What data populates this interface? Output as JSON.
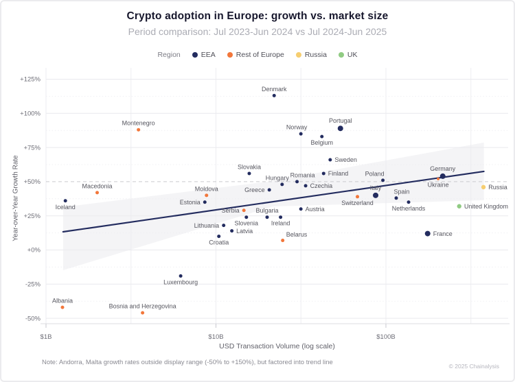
{
  "header": {
    "title": "Crypto adoption in Europe: growth vs. market size",
    "subtitle": "Period comparison: Jul 2023-Jun 2024 vs Jul 2024-Jun 2025"
  },
  "legend": {
    "label": "Region",
    "items": [
      {
        "label": "EEA",
        "color": "#232C5F"
      },
      {
        "label": "Rest of Europe",
        "color": "#F2773B"
      },
      {
        "label": "Russia",
        "color": "#F6CE70"
      },
      {
        "label": "UK",
        "color": "#90CB83"
      }
    ]
  },
  "chart_data": {
    "type": "scatter",
    "title": "Crypto adoption in Europe: growth vs. market size",
    "x_axis": {
      "label": "USD Transaction Volume (log scale)",
      "scale": "log",
      "ticks": [
        {
          "label": "$1B",
          "value_b": 1
        },
        {
          "label": "$10B",
          "value_b": 10
        },
        {
          "label": "$100B",
          "value_b": 100
        }
      ],
      "gridlines_b": [
        1,
        3.162,
        10,
        31.62,
        100,
        316.2
      ]
    },
    "y_axis": {
      "label": "Year-over-Year Growth Rate",
      "ticks": [
        {
          "label": "+125%",
          "value": 125
        },
        {
          "label": "+100%",
          "value": 100
        },
        {
          "label": "+75%",
          "value": 75
        },
        {
          "label": "+50%",
          "value": 50
        },
        {
          "label": "+25%",
          "value": 25
        },
        {
          "label": "+0%",
          "value": 0
        },
        {
          "label": "-25%",
          "value": -25
        },
        {
          "label": "-50%",
          "value": -50
        }
      ],
      "minor_ticks_pct": [
        112.5,
        87.5,
        62.5,
        37.5,
        12.5,
        -12.5,
        -37.5
      ]
    },
    "reference_line": {
      "value": 50,
      "style": "dashed"
    },
    "trend_line": {
      "from": {
        "volume_b": 1.26,
        "growth_pct": 13.3
      },
      "to": {
        "volume_b": 377,
        "growth_pct": 57.5
      }
    },
    "confidence_band": [
      {
        "volume_b": 1.26,
        "growth_pct": 31.4
      },
      {
        "volume_b": 21.7,
        "growth_pct": 50.5
      },
      {
        "volume_b": 377,
        "growth_pct": 78.6
      },
      {
        "volume_b": 377,
        "growth_pct": 36.4
      },
      {
        "volume_b": 21.7,
        "growth_pct": 31.9
      },
      {
        "volume_b": 1.26,
        "growth_pct": -14.8
      }
    ],
    "points": [
      {
        "name": "Iceland",
        "region": "EEA",
        "volume_b": 1.3,
        "growth_pct": 36,
        "size": "s",
        "label_pos": "below"
      },
      {
        "name": "Albania",
        "region": "Rest of Europe",
        "volume_b": 1.25,
        "growth_pct": -42,
        "size": "s",
        "label_pos": "above"
      },
      {
        "name": "Macedonia",
        "region": "Rest of Europe",
        "volume_b": 2.0,
        "growth_pct": 42,
        "size": "s",
        "label_pos": "above"
      },
      {
        "name": "Montenegro",
        "region": "Rest of Europe",
        "volume_b": 3.5,
        "growth_pct": 88,
        "size": "s",
        "label_pos": "above"
      },
      {
        "name": "Bosnia and Herzegovina",
        "region": "Rest of Europe",
        "volume_b": 3.7,
        "growth_pct": -46,
        "size": "s",
        "label_pos": "above"
      },
      {
        "name": "Luxembourg",
        "region": "EEA",
        "volume_b": 6.2,
        "growth_pct": -19,
        "size": "s",
        "label_pos": "below"
      },
      {
        "name": "Estonia",
        "region": "EEA",
        "volume_b": 8.6,
        "growth_pct": 35,
        "size": "s",
        "label_pos": "left"
      },
      {
        "name": "Moldova",
        "region": "Rest of Europe",
        "volume_b": 8.8,
        "growth_pct": 40,
        "size": "s",
        "label_pos": "above"
      },
      {
        "name": "Croatia",
        "region": "EEA",
        "volume_b": 10.4,
        "growth_pct": 10,
        "size": "s",
        "label_pos": "below"
      },
      {
        "name": "Lithuania",
        "region": "EEA",
        "volume_b": 11.1,
        "growth_pct": 18,
        "size": "s",
        "label_pos": "left"
      },
      {
        "name": "Latvia",
        "region": "EEA",
        "volume_b": 12.4,
        "growth_pct": 14,
        "size": "s",
        "label_pos": "right"
      },
      {
        "name": "Serbia",
        "region": "Rest of Europe",
        "volume_b": 14.6,
        "growth_pct": 29,
        "size": "s",
        "label_pos": "left"
      },
      {
        "name": "Slovenia",
        "region": "EEA",
        "volume_b": 15.1,
        "growth_pct": 24,
        "size": "s",
        "label_pos": "below"
      },
      {
        "name": "Slovakia",
        "region": "EEA",
        "volume_b": 15.7,
        "growth_pct": 56,
        "size": "s",
        "label_pos": "above"
      },
      {
        "name": "Bulgaria",
        "region": "EEA",
        "volume_b": 20,
        "growth_pct": 24,
        "size": "s",
        "label_pos": "above"
      },
      {
        "name": "Greece",
        "region": "EEA",
        "volume_b": 20.6,
        "growth_pct": 44,
        "size": "s",
        "label_pos": "left"
      },
      {
        "name": "Denmark",
        "region": "EEA",
        "volume_b": 22,
        "growth_pct": 113,
        "size": "s",
        "label_pos": "above"
      },
      {
        "name": "Ireland",
        "region": "EEA",
        "volume_b": 24,
        "growth_pct": 24,
        "size": "s",
        "label_pos": "below"
      },
      {
        "name": "Hungary",
        "region": "EEA",
        "volume_b": 24.5,
        "growth_pct": 48,
        "size": "s",
        "label_pos": "above",
        "label_dx": -7
      },
      {
        "name": "Belarus",
        "region": "Rest of Europe",
        "volume_b": 24.7,
        "growth_pct": 7,
        "size": "s",
        "label_pos": "above-right",
        "label_color": "#F2773B"
      },
      {
        "name": "Romania",
        "region": "EEA",
        "volume_b": 30,
        "growth_pct": 50,
        "size": "s",
        "label_pos": "above",
        "label_dx": 8
      },
      {
        "name": "Austria",
        "region": "EEA",
        "volume_b": 31.6,
        "growth_pct": 30,
        "size": "s",
        "label_pos": "right"
      },
      {
        "name": "Norway",
        "region": "EEA",
        "volume_b": 31.6,
        "growth_pct": 85,
        "size": "s",
        "label_pos": "above",
        "label_dx": -6
      },
      {
        "name": "Czechia",
        "region": "EEA",
        "volume_b": 33.7,
        "growth_pct": 47,
        "size": "s",
        "label_pos": "right"
      },
      {
        "name": "Belgium",
        "region": "EEA",
        "volume_b": 42,
        "growth_pct": 83,
        "size": "s",
        "label_pos": "below"
      },
      {
        "name": "Finland",
        "region": "EEA",
        "volume_b": 43,
        "growth_pct": 56,
        "size": "s",
        "label_pos": "right"
      },
      {
        "name": "Sweden",
        "region": "EEA",
        "volume_b": 47,
        "growth_pct": 66,
        "size": "s",
        "label_pos": "right"
      },
      {
        "name": "Portugal",
        "region": "EEA",
        "volume_b": 54,
        "growth_pct": 89,
        "size": "l",
        "label_pos": "above"
      },
      {
        "name": "Switzerland",
        "region": "Rest of Europe",
        "volume_b": 68,
        "growth_pct": 39,
        "size": "s",
        "label_pos": "below"
      },
      {
        "name": "Italy",
        "region": "EEA",
        "volume_b": 87,
        "growth_pct": 40,
        "size": "l",
        "label_pos": "above"
      },
      {
        "name": "Poland",
        "region": "EEA",
        "volume_b": 96,
        "growth_pct": 51,
        "size": "s",
        "label_pos": "above",
        "label_dx": -12
      },
      {
        "name": "Spain",
        "region": "EEA",
        "volume_b": 115,
        "growth_pct": 38,
        "size": "s",
        "label_pos": "above",
        "label_dx": 8
      },
      {
        "name": "Netherlands",
        "region": "EEA",
        "volume_b": 136,
        "growth_pct": 35,
        "size": "s",
        "label_pos": "below"
      },
      {
        "name": "France",
        "region": "EEA",
        "volume_b": 176,
        "growth_pct": 12,
        "size": "l",
        "label_pos": "right"
      },
      {
        "name": "Ukraine",
        "region": "Rest of Europe",
        "volume_b": 203,
        "growth_pct": 52,
        "size": "xs",
        "label_pos": "below"
      },
      {
        "name": "Germany",
        "region": "EEA",
        "volume_b": 216,
        "growth_pct": 54,
        "size": "l",
        "label_pos": "above"
      },
      {
        "name": "United Kingdom",
        "region": "UK",
        "volume_b": 270,
        "growth_pct": 32,
        "size": "m",
        "label_pos": "right"
      },
      {
        "name": "Russia",
        "region": "Russia",
        "volume_b": 375,
        "growth_pct": 46,
        "size": "m",
        "label_pos": "right"
      }
    ],
    "note": "Note: Andorra, Malta growth rates outside display range (-50% to +150%), but factored into trend line",
    "source": "© 2025 Chainalysis"
  }
}
